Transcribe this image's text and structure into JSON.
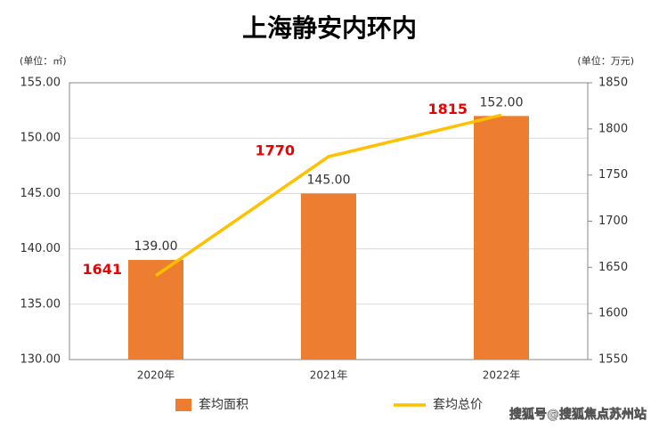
{
  "chart_data": {
    "type": "bar_line",
    "title": "上海静安内环内",
    "y_axis_label": "(单位：㎡)",
    "y2_axis_label": "(单位：万元)",
    "categories": [
      "2020年",
      "2021年",
      "2022年"
    ],
    "series": [
      {
        "name": "套均面积",
        "type": "bar",
        "color": "#ed7d31",
        "values": [
          139,
          145,
          152
        ],
        "value_labels": [
          "139.00",
          "145.00",
          "152.00"
        ]
      },
      {
        "name": "套均总价",
        "type": "line",
        "axis": "y2",
        "color": "#ffc000",
        "values": [
          1641,
          1770,
          1815
        ]
      }
    ],
    "ylim": [
      130,
      155
    ],
    "yticks": [
      {
        "value": 130,
        "label": "130.00"
      },
      {
        "value": 135,
        "label": "135.00"
      },
      {
        "value": 140,
        "label": "140.00"
      },
      {
        "value": 145,
        "label": "145.00"
      },
      {
        "value": 150,
        "label": "150.00"
      },
      {
        "value": 155,
        "label": "155.00"
      }
    ],
    "y2lim": [
      1550,
      1850
    ],
    "y2ticks": [
      1550,
      1600,
      1650,
      1700,
      1750,
      1800,
      1850
    ],
    "grid": true,
    "legend": "bottom",
    "watermark": "搜狐号@搜狐焦点苏州站"
  }
}
